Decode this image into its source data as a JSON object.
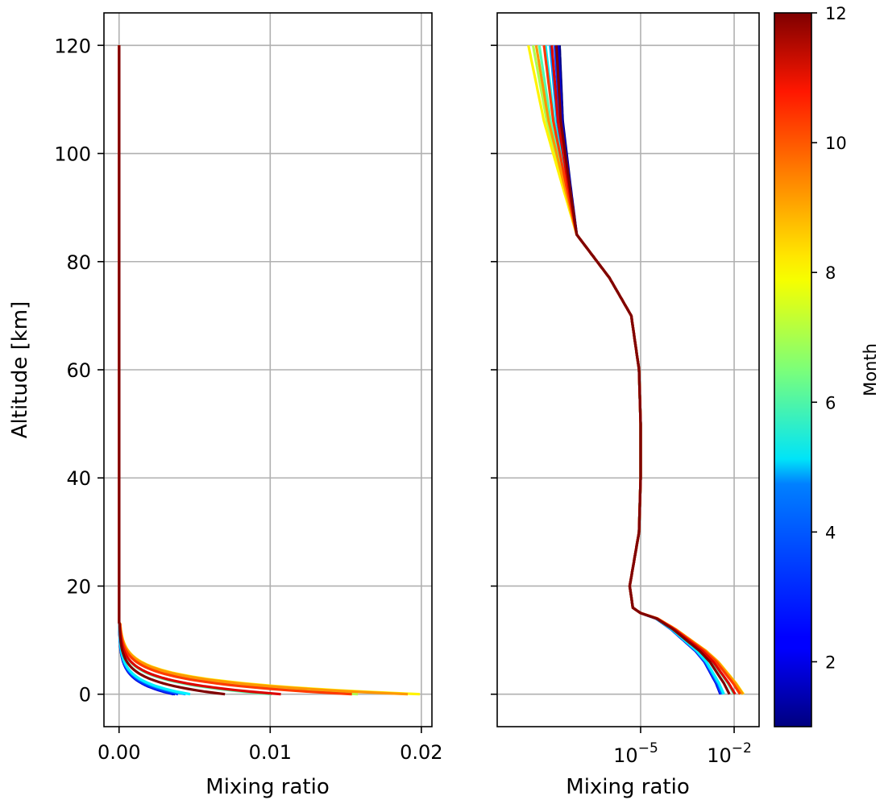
{
  "chart_data": [
    {
      "type": "line",
      "panel": "left",
      "xscale": "linear",
      "xlabel": "Mixing ratio",
      "ylabel": "Altitude [km]",
      "xlim": [
        -0.001,
        0.0207
      ],
      "ylim": [
        -6,
        126
      ],
      "xticks": [
        0.0,
        0.01,
        0.02
      ],
      "xtick_labels": [
        "0.00",
        "0.01",
        "0.02"
      ],
      "yticks": [
        0,
        20,
        40,
        60,
        80,
        100,
        120
      ],
      "ytick_labels": [
        "0",
        "20",
        "40",
        "60",
        "80",
        "100",
        "120"
      ],
      "grid": true,
      "series": [
        {
          "month": 1,
          "surface": 0.0037
        },
        {
          "month": 2,
          "surface": 0.0036
        },
        {
          "month": 3,
          "surface": 0.0039
        },
        {
          "month": 4,
          "surface": 0.0044
        },
        {
          "month": 5,
          "surface": 0.0047
        },
        {
          "month": 6,
          "surface": 0.0101
        },
        {
          "month": 7,
          "surface": 0.0158
        },
        {
          "month": 8,
          "surface": 0.0199
        },
        {
          "month": 9,
          "surface": 0.0191
        },
        {
          "month": 10,
          "surface": 0.0154
        },
        {
          "month": 11,
          "surface": 0.0107
        },
        {
          "month": 12,
          "surface": 0.007
        }
      ]
    },
    {
      "type": "line",
      "panel": "right",
      "xscale": "log",
      "xlabel": "Mixing ratio",
      "xlim_log10": [
        -9.6,
        -1.2
      ],
      "xticks_log10": [
        -5,
        -2
      ],
      "xtick_labels": [
        {
          "base": "10",
          "exp": "−5"
        },
        {
          "base": "10",
          "exp": "−2"
        }
      ],
      "ylim": [
        -6,
        126
      ],
      "yticks": [
        0,
        20,
        40,
        60,
        80,
        100,
        120
      ],
      "grid": true,
      "common_profile": {
        "altitudes": [
          120,
          106,
          94,
          85,
          77,
          70,
          60,
          50,
          40,
          30,
          20,
          18,
          16,
          15,
          14,
          12,
          10,
          8,
          6,
          4,
          2,
          0
        ],
        "log10_values": [
          -7.6,
          -7.5,
          -7.25,
          -7.05,
          -6.0,
          -5.3,
          -5.05,
          -5.0,
          -5.0,
          -5.05,
          -5.35,
          -5.3,
          -5.25,
          -5.0,
          -4.5,
          -4.0,
          -3.6,
          -3.2,
          -2.9,
          -2.7,
          -2.5,
          -2.35
        ]
      },
      "series": [
        {
          "month": 1,
          "surface_log10": -2.43,
          "top_log10": -7.6
        },
        {
          "month": 2,
          "surface_log10": -2.44,
          "top_log10": -7.65
        },
        {
          "month": 3,
          "surface_log10": -2.41,
          "top_log10": -7.75
        },
        {
          "month": 4,
          "surface_log10": -2.36,
          "top_log10": -7.9
        },
        {
          "month": 5,
          "surface_log10": -2.33,
          "top_log10": -8.05
        },
        {
          "month": 6,
          "surface_log10": -2.0,
          "top_log10": -8.25
        },
        {
          "month": 7,
          "surface_log10": -1.8,
          "top_log10": -8.45
        },
        {
          "month": 8,
          "surface_log10": -1.7,
          "top_log10": -8.6
        },
        {
          "month": 9,
          "surface_log10": -1.72,
          "top_log10": -8.35
        },
        {
          "month": 10,
          "surface_log10": -1.81,
          "top_log10": -8.1
        },
        {
          "month": 11,
          "surface_log10": -1.97,
          "top_log10": -7.85
        },
        {
          "month": 12,
          "surface_log10": -2.15,
          "top_log10": -7.7
        }
      ]
    }
  ],
  "colorbar": {
    "label": "Month",
    "min": 1,
    "max": 12,
    "ticks": [
      2,
      4,
      6,
      8,
      10,
      12
    ],
    "tick_labels": [
      "2",
      "4",
      "6",
      "8",
      "10",
      "12"
    ],
    "colormap": "jet"
  }
}
